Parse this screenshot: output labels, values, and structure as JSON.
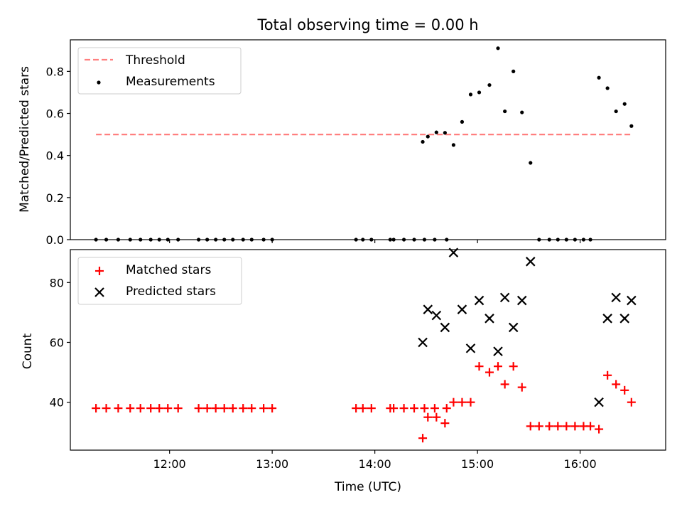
{
  "figure": {
    "title": "Total observing time = 0.00 h"
  },
  "chart_data": [
    {
      "type": "scatter",
      "panel": "top",
      "ylabel": "Matched/Predicted stars",
      "xlabel": "",
      "ylim": [
        0,
        0.95
      ],
      "xlim": [
        "11:02",
        "16:50"
      ],
      "yticks": [
        0.0,
        0.2,
        0.4,
        0.6,
        0.8
      ],
      "ytick_labels": [
        "0.0",
        "0.2",
        "0.4",
        "0.6",
        "0.8"
      ],
      "xticks": [
        "12:00",
        "13:00",
        "14:00",
        "15:00",
        "16:00"
      ],
      "xtick_labels_shown": false,
      "legend_position": "top-left",
      "threshold": {
        "name": "Threshold",
        "color": "#ff7f7f",
        "style": "dashed",
        "value": 0.5,
        "x_start": "11:17",
        "x_end": "16:30"
      },
      "series": [
        {
          "name": "Measurements",
          "marker": "dot",
          "color": "#000000",
          "points": [
            [
              "11:17",
              0.0
            ],
            [
              "11:23",
              0.0
            ],
            [
              "11:30",
              0.0
            ],
            [
              "11:37",
              0.0
            ],
            [
              "11:43",
              0.0
            ],
            [
              "11:49",
              0.0
            ],
            [
              "11:54",
              0.0
            ],
            [
              "11:59",
              0.0
            ],
            [
              "12:05",
              0.0
            ],
            [
              "12:17",
              0.0
            ],
            [
              "12:22",
              0.0
            ],
            [
              "12:27",
              0.0
            ],
            [
              "12:32",
              0.0
            ],
            [
              "12:37",
              0.0
            ],
            [
              "12:43",
              0.0
            ],
            [
              "12:48",
              0.0
            ],
            [
              "12:55",
              0.0
            ],
            [
              "13:00",
              0.0
            ],
            [
              "13:49",
              0.0
            ],
            [
              "13:53",
              0.0
            ],
            [
              "13:58",
              0.0
            ],
            [
              "14:09",
              0.0
            ],
            [
              "14:11",
              0.0
            ],
            [
              "14:17",
              0.0
            ],
            [
              "14:23",
              0.0
            ],
            [
              "14:29",
              0.0
            ],
            [
              "14:35",
              0.0
            ],
            [
              "14:42",
              0.0
            ],
            [
              "14:28",
              0.465
            ],
            [
              "14:31",
              0.49
            ],
            [
              "14:36",
              0.51
            ],
            [
              "14:41",
              0.508
            ],
            [
              "14:46",
              0.45
            ],
            [
              "14:51",
              0.56
            ],
            [
              "14:56",
              0.69
            ],
            [
              "15:01",
              0.7
            ],
            [
              "15:07",
              0.735
            ],
            [
              "15:12",
              0.91
            ],
            [
              "15:16",
              0.61
            ],
            [
              "15:21",
              0.8
            ],
            [
              "15:26",
              0.605
            ],
            [
              "15:31",
              0.365
            ],
            [
              "15:36",
              0.0
            ],
            [
              "15:42",
              0.0
            ],
            [
              "15:47",
              0.0
            ],
            [
              "15:52",
              0.0
            ],
            [
              "15:57",
              0.0
            ],
            [
              "16:02",
              0.0
            ],
            [
              "16:06",
              0.0
            ],
            [
              "16:11",
              0.77
            ],
            [
              "16:16",
              0.72
            ],
            [
              "16:21",
              0.61
            ],
            [
              "16:26",
              0.645
            ],
            [
              "16:30",
              0.54
            ]
          ]
        }
      ]
    },
    {
      "type": "scatter",
      "panel": "bottom",
      "xlabel": "Time (UTC)",
      "ylabel": "Count",
      "ylim": [
        24,
        91
      ],
      "xlim": [
        "11:02",
        "16:50"
      ],
      "yticks": [
        40,
        60,
        80
      ],
      "ytick_labels": [
        "40",
        "60",
        "80"
      ],
      "xticks": [
        "12:00",
        "13:00",
        "14:00",
        "15:00",
        "16:00"
      ],
      "xtick_labels": [
        "12:00",
        "13:00",
        "14:00",
        "15:00",
        "16:00"
      ],
      "legend_position": "top-left",
      "series": [
        {
          "name": "Matched stars",
          "marker": "plus",
          "color": "#ff0000",
          "points": [
            [
              "11:17",
              38
            ],
            [
              "11:23",
              38
            ],
            [
              "11:30",
              38
            ],
            [
              "11:37",
              38
            ],
            [
              "11:43",
              38
            ],
            [
              "11:49",
              38
            ],
            [
              "11:54",
              38
            ],
            [
              "11:59",
              38
            ],
            [
              "12:05",
              38
            ],
            [
              "12:17",
              38
            ],
            [
              "12:22",
              38
            ],
            [
              "12:27",
              38
            ],
            [
              "12:32",
              38
            ],
            [
              "12:37",
              38
            ],
            [
              "12:43",
              38
            ],
            [
              "12:48",
              38
            ],
            [
              "12:55",
              38
            ],
            [
              "13:00",
              38
            ],
            [
              "13:49",
              38
            ],
            [
              "13:53",
              38
            ],
            [
              "13:58",
              38
            ],
            [
              "14:09",
              38
            ],
            [
              "14:11",
              38
            ],
            [
              "14:17",
              38
            ],
            [
              "14:23",
              38
            ],
            [
              "14:29",
              38
            ],
            [
              "14:35",
              38
            ],
            [
              "14:42",
              38
            ],
            [
              "14:28",
              28
            ],
            [
              "14:31",
              35
            ],
            [
              "14:36",
              35
            ],
            [
              "14:41",
              33
            ],
            [
              "14:46",
              40
            ],
            [
              "14:51",
              40
            ],
            [
              "14:56",
              40
            ],
            [
              "15:01",
              52
            ],
            [
              "15:07",
              50
            ],
            [
              "15:12",
              52
            ],
            [
              "15:16",
              46
            ],
            [
              "15:21",
              52
            ],
            [
              "15:26",
              45
            ],
            [
              "15:31",
              32
            ],
            [
              "15:36",
              32
            ],
            [
              "15:42",
              32
            ],
            [
              "15:47",
              32
            ],
            [
              "15:52",
              32
            ],
            [
              "15:57",
              32
            ],
            [
              "16:02",
              32
            ],
            [
              "16:06",
              32
            ],
            [
              "16:11",
              31
            ],
            [
              "16:16",
              49
            ],
            [
              "16:21",
              46
            ],
            [
              "16:26",
              44
            ],
            [
              "16:30",
              40
            ]
          ]
        },
        {
          "name": "Predicted stars",
          "marker": "x",
          "color": "#000000",
          "points": [
            [
              "14:28",
              60
            ],
            [
              "14:31",
              71
            ],
            [
              "14:36",
              69
            ],
            [
              "14:41",
              65
            ],
            [
              "14:46",
              90
            ],
            [
              "14:51",
              71
            ],
            [
              "14:56",
              58
            ],
            [
              "15:01",
              74
            ],
            [
              "15:07",
              68
            ],
            [
              "15:12",
              57
            ],
            [
              "15:16",
              75
            ],
            [
              "15:21",
              65
            ],
            [
              "15:26",
              74
            ],
            [
              "15:31",
              87
            ],
            [
              "16:11",
              40
            ],
            [
              "16:16",
              68
            ],
            [
              "16:21",
              75
            ],
            [
              "16:26",
              68
            ],
            [
              "16:30",
              74
            ]
          ]
        }
      ]
    }
  ]
}
